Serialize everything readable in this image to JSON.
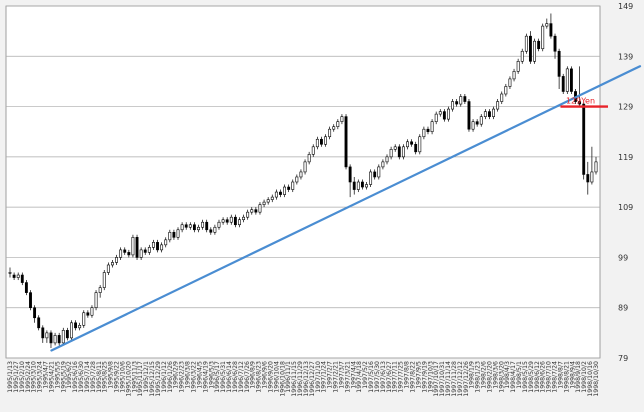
{
  "chart_data": {
    "type": "candlestick",
    "title": "",
    "xlabel": "",
    "ylabel": "",
    "ylim": [
      79,
      149
    ],
    "y_ticks": [
      79,
      89,
      99,
      109,
      119,
      129,
      139,
      149
    ],
    "grid": true,
    "x_tick_labels": [
      "1995/1/13",
      "1995/1/27",
      "1995/2/10",
      "1995/2/24",
      "1995/3/10",
      "1995/3/24",
      "1995/4/7",
      "1995/4/21",
      "1995/5/5",
      "1995/5/19",
      "1995/6/2",
      "1995/6/16",
      "1995/6/30",
      "1995/7/14",
      "1995/7/28",
      "1995/8/11",
      "1995/8/25",
      "1995/9/8",
      "1995/9/22",
      "1995/10/6",
      "1995/10/20",
      "1995/11/3",
      "1995/11/17",
      "1995/12/1",
      "1995/12/15",
      "1995/12/29",
      "1996/1/12",
      "1996/1/26",
      "1996/2/9",
      "1996/2/23",
      "1996/3/8",
      "1996/3/22",
      "1996/4/5",
      "1996/4/19",
      "1996/5/3",
      "1996/5/17",
      "1996/5/31",
      "1996/6/14",
      "1996/6/28",
      "1996/7/12",
      "1996/7/26",
      "1996/8/9",
      "1996/8/23",
      "1996/9/6",
      "1996/9/20",
      "1996/10/4",
      "1996/10/18",
      "1996/11/1",
      "1996/11/15",
      "1996/11/29",
      "1996/12/13",
      "1996/12/27",
      "1997/1/10",
      "1997/1/24",
      "1997/2/7",
      "1997/2/21",
      "1997/3/7",
      "1997/3/21",
      "1997/4/4",
      "1997/4/18",
      "1997/5/2",
      "1997/5/16",
      "1997/5/30",
      "1997/6/13",
      "1997/6/27",
      "1997/7/11",
      "1997/7/25",
      "1997/8/8",
      "1997/8/22",
      "1997/9/5",
      "1997/9/19",
      "1997/10/3",
      "1997/10/17",
      "1997/10/31",
      "1997/11/14",
      "1997/11/28",
      "1997/12/12",
      "1997/12/26",
      "1998/1/9",
      "1998/1/23",
      "1998/2/6",
      "1998/2/20",
      "1998/3/6",
      "1998/3/20",
      "1998/4/3",
      "1998/4/17",
      "1998/5/1",
      "1998/5/15",
      "1998/5/29",
      "1998/6/12",
      "1998/6/26",
      "1998/7/10",
      "1998/7/24",
      "1998/8/7",
      "1998/8/21",
      "1998/9/4",
      "1998/9/18",
      "1998/10/2",
      "1998/10/16",
      "1998/10/30"
    ],
    "candles": [
      [
        96,
        96,
        97,
        95
      ],
      [
        95.5,
        95,
        96,
        94.5
      ],
      [
        95,
        95.5,
        96,
        94.5
      ],
      [
        95.5,
        94,
        96,
        93.5
      ],
      [
        94,
        92,
        94.5,
        91.5
      ],
      [
        92,
        89,
        92.5,
        88.5
      ],
      [
        89,
        87,
        89.5,
        86
      ],
      [
        87,
        85,
        87.5,
        84.5
      ],
      [
        85,
        83,
        85.5,
        82
      ],
      [
        83,
        84,
        84.5,
        82
      ],
      [
        84,
        82,
        84.5,
        81
      ],
      [
        82,
        83.5,
        84,
        81.5
      ],
      [
        83.5,
        82,
        84,
        81.5
      ],
      [
        82,
        84.5,
        85,
        81.5
      ],
      [
        84.5,
        83,
        85,
        82.5
      ],
      [
        83,
        86,
        86.5,
        82.5
      ],
      [
        86,
        85,
        86.5,
        84.5
      ],
      [
        85,
        85.5,
        86,
        84.5
      ],
      [
        85.5,
        88,
        88.5,
        85
      ],
      [
        88,
        87.5,
        88.5,
        87
      ],
      [
        87.5,
        89,
        89.5,
        87
      ],
      [
        89,
        92,
        92.5,
        88.5
      ],
      [
        92,
        93,
        93.5,
        91
      ],
      [
        93,
        96,
        96.5,
        92.5
      ],
      [
        96,
        97.5,
        98,
        95.5
      ],
      [
        97.5,
        98,
        98.5,
        97
      ],
      [
        98,
        99,
        99.5,
        97.5
      ],
      [
        99,
        100.5,
        101,
        98.5
      ],
      [
        100.5,
        100,
        101,
        99.5
      ],
      [
        100,
        99.5,
        100.5,
        99
      ],
      [
        99.5,
        103,
        103.5,
        99
      ],
      [
        103,
        99,
        103.5,
        98.5
      ],
      [
        99,
        100.5,
        101,
        98.5
      ],
      [
        100.5,
        100,
        101,
        99.5
      ],
      [
        100,
        101,
        101.5,
        99.5
      ],
      [
        101,
        102,
        102.5,
        100.5
      ],
      [
        102,
        100.5,
        102.5,
        100
      ],
      [
        100.5,
        101.5,
        102,
        100
      ],
      [
        101.5,
        102.5,
        103,
        101
      ],
      [
        102.5,
        104,
        104.5,
        102
      ],
      [
        104,
        103,
        104.5,
        102.5
      ],
      [
        103,
        104.5,
        105,
        102.5
      ],
      [
        104.5,
        105.5,
        106,
        104
      ],
      [
        105.5,
        105,
        106,
        104.5
      ],
      [
        105,
        105.5,
        106,
        104.5
      ],
      [
        105.5,
        104.5,
        106,
        104
      ],
      [
        104.5,
        105,
        105.5,
        104
      ],
      [
        105,
        106,
        106.5,
        104.5
      ],
      [
        106,
        104.5,
        106.5,
        104
      ],
      [
        104.5,
        104,
        105,
        103.5
      ],
      [
        104,
        105,
        105.5,
        103.5
      ],
      [
        105,
        106,
        106.5,
        104.5
      ],
      [
        106,
        106.5,
        107,
        105.5
      ],
      [
        106.5,
        106,
        107,
        105.5
      ],
      [
        106,
        107,
        107.5,
        105.5
      ],
      [
        107,
        105.5,
        107.5,
        105
      ],
      [
        105.5,
        106.5,
        107,
        105
      ],
      [
        106.5,
        107,
        107.5,
        106
      ],
      [
        107,
        108,
        108.5,
        106.5
      ],
      [
        108,
        108.5,
        109,
        107.5
      ],
      [
        108.5,
        108,
        109,
        107.5
      ],
      [
        108,
        109.5,
        110,
        107.5
      ],
      [
        109.5,
        110,
        110.5,
        109
      ],
      [
        110,
        110.5,
        111,
        109.5
      ],
      [
        110.5,
        111,
        111.5,
        110
      ],
      [
        111,
        112,
        112.5,
        110.5
      ],
      [
        112,
        111.5,
        112.5,
        111
      ],
      [
        111.5,
        113,
        113.5,
        111
      ],
      [
        113,
        112.5,
        113.5,
        112
      ],
      [
        112.5,
        114,
        114.5,
        112
      ],
      [
        114,
        115,
        115.5,
        113.5
      ],
      [
        115,
        116,
        116.5,
        114.5
      ],
      [
        116,
        118,
        118.5,
        115.5
      ],
      [
        118,
        119.5,
        120,
        117.5
      ],
      [
        119.5,
        121,
        121.5,
        119
      ],
      [
        121,
        122.5,
        123,
        120.5
      ],
      [
        122.5,
        121.5,
        123,
        121
      ],
      [
        121.5,
        123,
        123.5,
        121
      ],
      [
        123,
        124.5,
        125,
        122.5
      ],
      [
        124.5,
        125,
        125.5,
        124
      ],
      [
        125,
        126,
        126.5,
        124.5
      ],
      [
        126,
        127,
        127.5,
        125.5
      ],
      [
        127,
        117,
        127.5,
        116.5
      ],
      [
        117,
        114,
        117.5,
        111
      ],
      [
        114,
        112.5,
        115,
        111.5
      ],
      [
        112.5,
        114,
        114.5,
        112
      ],
      [
        114,
        113,
        114.5,
        112.5
      ],
      [
        113,
        113.5,
        114,
        112.5
      ],
      [
        113.5,
        116,
        116.5,
        113
      ],
      [
        116,
        115,
        116.5,
        114.5
      ],
      [
        115,
        117,
        117.5,
        114.5
      ],
      [
        117,
        118,
        118.5,
        116.5
      ],
      [
        118,
        119,
        119.5,
        117.5
      ],
      [
        119,
        120.5,
        121,
        118.5
      ],
      [
        120.5,
        121,
        121.5,
        120
      ],
      [
        121,
        119,
        121.5,
        118.5
      ],
      [
        119,
        121,
        121.5,
        118.5
      ],
      [
        121,
        122,
        122.5,
        120.5
      ],
      [
        122,
        121.5,
        122.5,
        121
      ],
      [
        121.5,
        120,
        122,
        119.5
      ],
      [
        120,
        123,
        123.5,
        119.5
      ],
      [
        123,
        124.5,
        125,
        122.5
      ],
      [
        124.5,
        124,
        125,
        123.5
      ],
      [
        124,
        126,
        126.5,
        123.5
      ],
      [
        126,
        127.5,
        128,
        125.5
      ],
      [
        127.5,
        128,
        128.5,
        127
      ],
      [
        128,
        126.5,
        128.5,
        126
      ],
      [
        126.5,
        128.5,
        129,
        126
      ],
      [
        128.5,
        130,
        130.5,
        128
      ],
      [
        130,
        129.5,
        130.5,
        129
      ],
      [
        129.5,
        131,
        131.5,
        129
      ],
      [
        131,
        130,
        131.5,
        129.5
      ],
      [
        130,
        124.5,
        130.5,
        124
      ],
      [
        124.5,
        126,
        126.5,
        124
      ],
      [
        126,
        125.5,
        126.5,
        125
      ],
      [
        125.5,
        127,
        127.5,
        125
      ],
      [
        127,
        128,
        128.5,
        126.5
      ],
      [
        128,
        127,
        128.5,
        126.5
      ],
      [
        127,
        128.5,
        129,
        126.5
      ],
      [
        128.5,
        130,
        130.5,
        128
      ],
      [
        130,
        131.5,
        132,
        129.5
      ],
      [
        131.5,
        133,
        133.5,
        131
      ],
      [
        133,
        134.5,
        135,
        132.5
      ],
      [
        134.5,
        136,
        136.5,
        134
      ],
      [
        136,
        138,
        138.5,
        135.5
      ],
      [
        138,
        140,
        140.5,
        137.5
      ],
      [
        140,
        143,
        143.5,
        139.5
      ],
      [
        143,
        138,
        144,
        137.5
      ],
      [
        138,
        142,
        142.5,
        137.5
      ],
      [
        142,
        140.5,
        142.5,
        140
      ],
      [
        140.5,
        145,
        145.5,
        140
      ],
      [
        145,
        145.5,
        146.5,
        144.5
      ],
      [
        145.5,
        143,
        147.5,
        142.5
      ],
      [
        143,
        140,
        143.5,
        138.5
      ],
      [
        140,
        135,
        140.5,
        132.5
      ],
      [
        135,
        132,
        135.5,
        131.5
      ],
      [
        132,
        136.5,
        137,
        131.5
      ],
      [
        136.5,
        132,
        137,
        131.5
      ],
      [
        132,
        130,
        132.5,
        129.5
      ],
      [
        130,
        129.5,
        137,
        129
      ],
      [
        129.5,
        115.5,
        130,
        114.5
      ],
      [
        115.5,
        114,
        118,
        111.5
      ],
      [
        114,
        116,
        121,
        113.5
      ],
      [
        116,
        118,
        119,
        115.5
      ]
    ],
    "trendline": {
      "from": [
        "1995/4/21",
        80.5
      ],
      "to": [
        "1998/10/30",
        132.8
      ]
    },
    "annotations": [
      {
        "text": "129Yen",
        "value": 129,
        "color": "#e8232a",
        "from": "1998/8/7",
        "to": "1998/10/30"
      }
    ],
    "colors": {
      "candle": "#000000",
      "trendline": "#4a8dd2",
      "annotation": "#e8232a",
      "grid": "#aaaaaa",
      "plot_bg": "#ffffff"
    }
  }
}
